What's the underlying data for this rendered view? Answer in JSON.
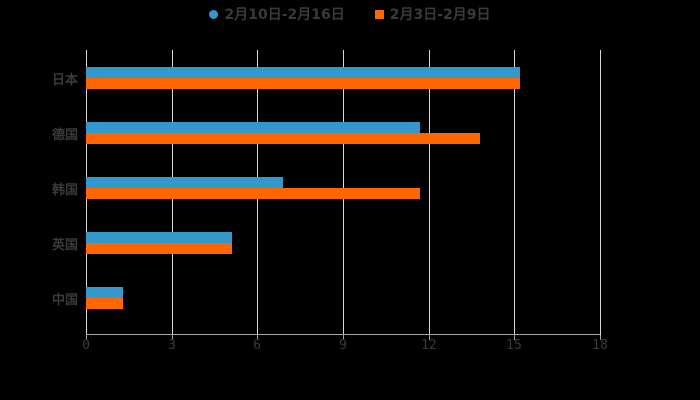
{
  "chart_data": {
    "type": "bar",
    "orientation": "horizontal",
    "title": "",
    "categories": [
      "日本",
      "德国",
      "韩国",
      "英国",
      "中国"
    ],
    "series": [
      {
        "name": "2月10日-2月16日",
        "color": "#3399cc",
        "values": [
          15.2,
          11.7,
          6.9,
          5.1,
          1.3
        ]
      },
      {
        "name": "2月3日-2月9日",
        "color": "#ff6600",
        "values": [
          15.2,
          13.8,
          11.7,
          5.1,
          1.3
        ]
      }
    ],
    "xlabel": "",
    "ylabel": "",
    "xlim": [
      0,
      18
    ],
    "xticks": [
      "0",
      "3",
      "6",
      "9",
      "12",
      "15",
      "18"
    ],
    "grid": true,
    "legend_position": "top"
  },
  "legend": {
    "items": [
      {
        "label": "2月10日-2月16日",
        "color": "#3399cc"
      },
      {
        "label": "2月3日-2月9日",
        "color": "#ff6600"
      }
    ]
  }
}
